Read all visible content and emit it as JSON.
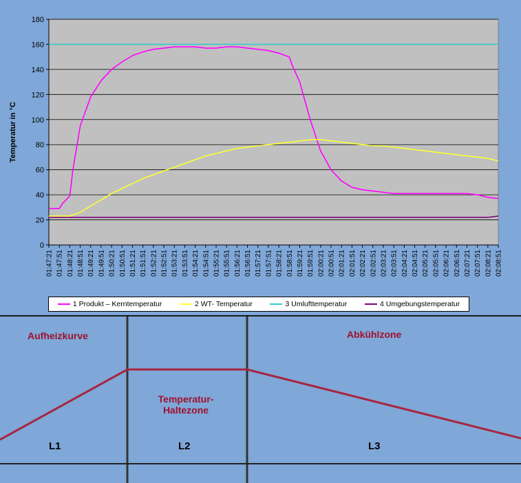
{
  "chart_data": {
    "type": "line",
    "ylabel": "Temperatur in °C",
    "ylim": [
      0,
      180
    ],
    "yticks": [
      0,
      20,
      40,
      60,
      80,
      100,
      120,
      140,
      160,
      180
    ],
    "xticks": [
      "01:47:21",
      "01:47:51",
      "01:48:21",
      "01:48:51",
      "01:49:21",
      "01:49:51",
      "01:50:21",
      "01:50:51",
      "01:51:21",
      "01:51:51",
      "01:52:21",
      "01:52:51",
      "01:53:21",
      "01:53:51",
      "01:54:21",
      "01:54:51",
      "01:55:21",
      "01:55:51",
      "01:56:21",
      "01:56:51",
      "01:57:21",
      "01:57:51",
      "01:58:21",
      "01:58:51",
      "01:59:21",
      "01:59:51",
      "02:00:21",
      "02:00:51",
      "02:01:21",
      "02:01:51",
      "02:02:21",
      "02:02:51",
      "02:03:21",
      "02:03:51",
      "02:04:21",
      "02:04:51",
      "02:05:21",
      "02:05:51",
      "02:06:21",
      "02:06:51",
      "02:07:21",
      "02:07:51",
      "02:08:21",
      "02:08:51"
    ],
    "grid": true,
    "legend_position": "bottom",
    "x_time_points": [
      "01:47:21",
      "01:47:51",
      "01:48:00",
      "01:48:21",
      "01:48:30",
      "01:48:51",
      "01:49:21",
      "01:49:51",
      "01:50:21",
      "01:50:51",
      "01:51:21",
      "01:51:51",
      "01:52:21",
      "01:52:51",
      "01:53:21",
      "01:53:51",
      "01:54:21",
      "01:54:51",
      "01:55:21",
      "01:55:51",
      "01:56:21",
      "01:56:51",
      "01:57:21",
      "01:57:51",
      "01:58:21",
      "01:58:51",
      "01:59:00",
      "01:59:21",
      "01:59:51",
      "02:00:21",
      "02:00:51",
      "02:01:21",
      "02:01:51",
      "02:02:21",
      "02:02:51",
      "02:03:21",
      "02:03:51",
      "02:04:21",
      "02:04:51",
      "02:05:21",
      "02:05:51",
      "02:06:21",
      "02:06:51",
      "02:07:21",
      "02:07:51",
      "02:08:21",
      "02:08:51"
    ],
    "series": [
      {
        "name": "1 Produkt – Kerntemperatur",
        "color": "#ff00ff",
        "values": [
          29,
          29,
          33,
          39,
          60,
          95,
          118,
          131,
          140,
          146,
          151,
          154,
          156,
          157,
          158,
          158,
          158,
          157,
          157,
          158,
          158,
          157,
          156,
          155,
          153,
          150,
          143,
          130,
          100,
          75,
          60,
          51,
          46,
          44,
          43,
          42,
          41,
          41,
          41,
          41,
          41,
          41,
          41,
          41,
          40,
          38,
          37
        ]
      },
      {
        "name": "2 WT- Temperatur",
        "color": "#ffff33",
        "values": [
          23,
          23,
          23,
          23,
          24,
          26,
          31,
          36,
          41,
          45,
          49,
          53,
          56,
          59,
          62,
          65,
          68,
          71,
          73,
          75,
          77,
          78,
          79,
          80,
          81,
          82,
          82,
          83,
          84,
          84,
          83,
          82,
          81,
          80,
          79,
          79,
          78,
          77,
          76,
          75,
          74,
          73,
          72,
          71,
          70,
          69,
          67
        ]
      },
      {
        "name": "3 Umlufttemperatur",
        "color": "#33cccc",
        "values": [
          160,
          160,
          160,
          160,
          160,
          160,
          160,
          160,
          160,
          160,
          160,
          160,
          160,
          160,
          160,
          160,
          160,
          160,
          160,
          160,
          160,
          160,
          160,
          160,
          160,
          160,
          160,
          160,
          160,
          160,
          160,
          160,
          160,
          160,
          160,
          160,
          160,
          160,
          160,
          160,
          160,
          160,
          160,
          160,
          160,
          160,
          160
        ]
      },
      {
        "name": "4 Umgebungstemperatur",
        "color": "#800080",
        "values": [
          22,
          22,
          22,
          22,
          22,
          22,
          22,
          22,
          22,
          22,
          22,
          22,
          22,
          22,
          22,
          22,
          22,
          22,
          22,
          22,
          22,
          22,
          22,
          22,
          22,
          22,
          22,
          22,
          22,
          22,
          22,
          22,
          22,
          22,
          22,
          22,
          22,
          22,
          22,
          22,
          22,
          22,
          22,
          22,
          22,
          22,
          23
        ]
      }
    ]
  },
  "zones": {
    "heating": "Aufheizkurve",
    "hold_line1": "Temperatur-",
    "hold_line2": "Haltezone",
    "cooling": "Abkühlzone",
    "segments": [
      "L1",
      "L2",
      "L3"
    ]
  }
}
